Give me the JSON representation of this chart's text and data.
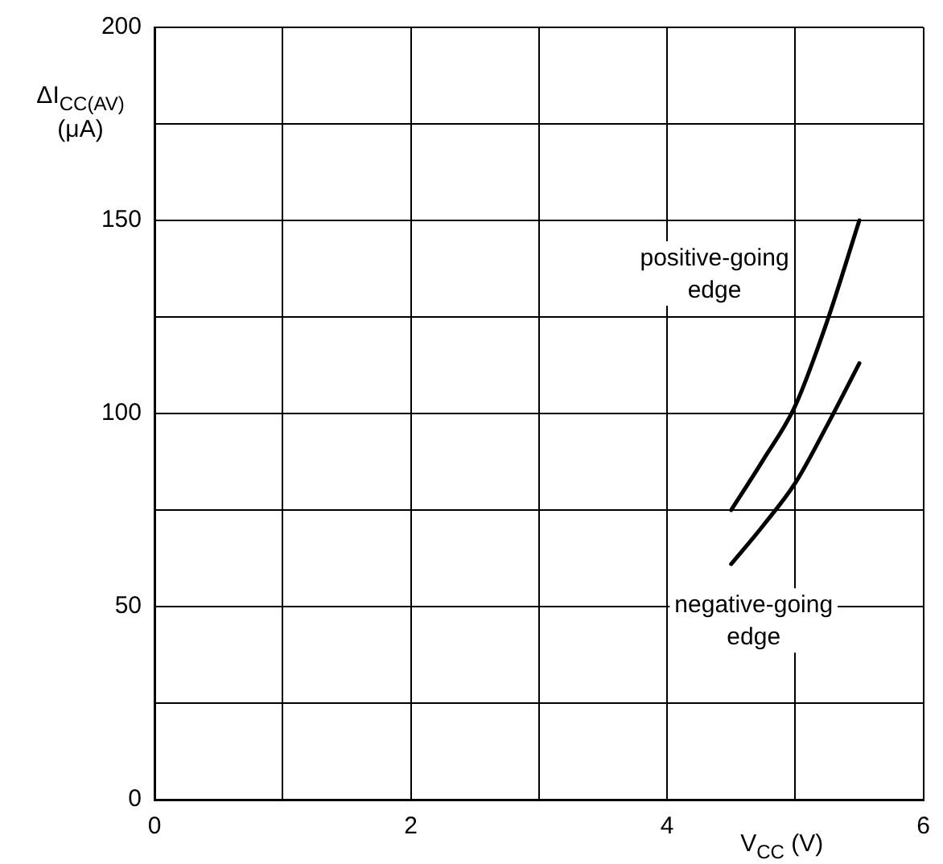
{
  "chart_data": {
    "type": "line",
    "xlabel": "V$_{CC}$ (V)",
    "ylabel": "ΔI$_{CC(AV)}$ (μA)",
    "xlim": [
      0,
      6
    ],
    "ylim": [
      0,
      200
    ],
    "xticks": [
      0,
      {
        "value": 1,
        "label": null
      },
      2,
      {
        "value": 3,
        "label": null
      },
      4,
      {
        "value": 5,
        "label": null
      },
      6
    ],
    "yticks": [
      0,
      {
        "value": 25,
        "label": null
      },
      50,
      {
        "value": 75,
        "label": null
      },
      100,
      {
        "value": 125,
        "label": null
      },
      150,
      {
        "value": 175,
        "label": null
      },
      200
    ],
    "grid": true,
    "legend": false,
    "marker": "none",
    "line_style": "solid",
    "series": [
      {
        "name": "positive-going edge",
        "color": "#000000",
        "x": [
          4.5,
          4.75,
          5.0,
          5.25,
          5.5
        ],
        "values": [
          75,
          88,
          102,
          124,
          150
        ]
      },
      {
        "name": "negative-going edge",
        "color": "#000000",
        "x": [
          4.5,
          4.75,
          5.0,
          5.25,
          5.5
        ],
        "values": [
          61,
          71,
          82,
          97,
          113
        ]
      }
    ]
  }
}
